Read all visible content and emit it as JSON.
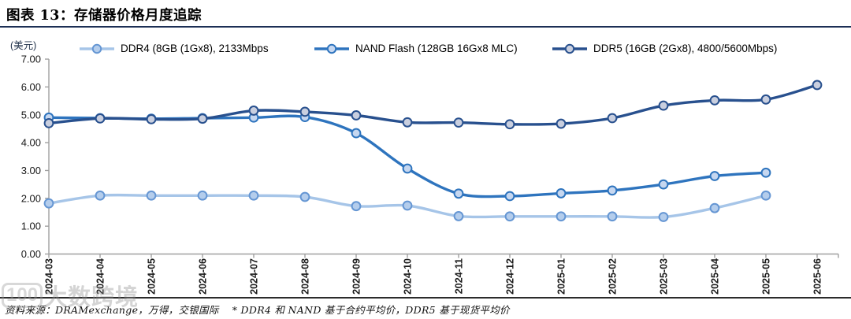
{
  "header": {
    "title": "图表 13：存储器价格月度追踪"
  },
  "chart": {
    "unit_label": "(美元)"
  },
  "chart_data": {
    "type": "line",
    "title": "存储器价格月度追踪",
    "unit_label": "(美元)",
    "grid": false,
    "legend_position": "top",
    "ylim": [
      0,
      7
    ],
    "y_tick_step": 1,
    "y_tick_labels": [
      "0.00",
      "1.00",
      "2.00",
      "3.00",
      "4.00",
      "5.00",
      "6.00",
      "7.00"
    ],
    "categories": [
      "2024-03",
      "2024-04",
      "2024-05",
      "2024-06",
      "2024-07",
      "2024-08",
      "2024-09",
      "2024-10",
      "2024-11",
      "2024-12",
      "2025-01",
      "2025-02",
      "2025-03",
      "2025-04",
      "2025-05",
      "2025-06"
    ],
    "series": [
      {
        "name": "DDR4 (8GB (1Gx8), 2133Mbps",
        "color": "#A6C5E8",
        "marker_fill": "#B4CDEC",
        "marker_stroke": "#6596D3",
        "values": [
          1.82,
          2.1,
          2.1,
          2.1,
          2.1,
          2.05,
          1.72,
          1.74,
          1.36,
          1.35,
          1.35,
          1.35,
          1.33,
          1.65,
          2.1,
          null
        ]
      },
      {
        "name": "NAND Flash (128GB 16Gx8 MLC)",
        "color": "#2E74BE",
        "marker_fill": "#C6D7F0",
        "marker_stroke": "#2E74BE",
        "values": [
          4.9,
          4.88,
          4.86,
          4.88,
          4.9,
          4.92,
          4.34,
          3.07,
          2.17,
          2.08,
          2.18,
          2.28,
          2.5,
          2.8,
          2.92,
          null
        ]
      },
      {
        "name": "DDR5 (16GB (2Gx8), 4800/5600Mbps)",
        "color": "#28508E",
        "marker_fill": "#C9CFDF",
        "marker_stroke": "#28508E",
        "values": [
          4.7,
          4.87,
          4.84,
          4.86,
          5.15,
          5.11,
          4.98,
          4.73,
          4.72,
          4.66,
          4.68,
          4.88,
          5.33,
          5.52,
          5.55,
          6.07
        ]
      }
    ]
  },
  "footer": {
    "source_note": "资料来源：DRAMexchange，万得，交银国际　 * DDR4 和 NAND 基于合约平均价，DDR5 基于现货平均价"
  },
  "watermark": {
    "logo_text": "100",
    "text": "大数跨境"
  }
}
